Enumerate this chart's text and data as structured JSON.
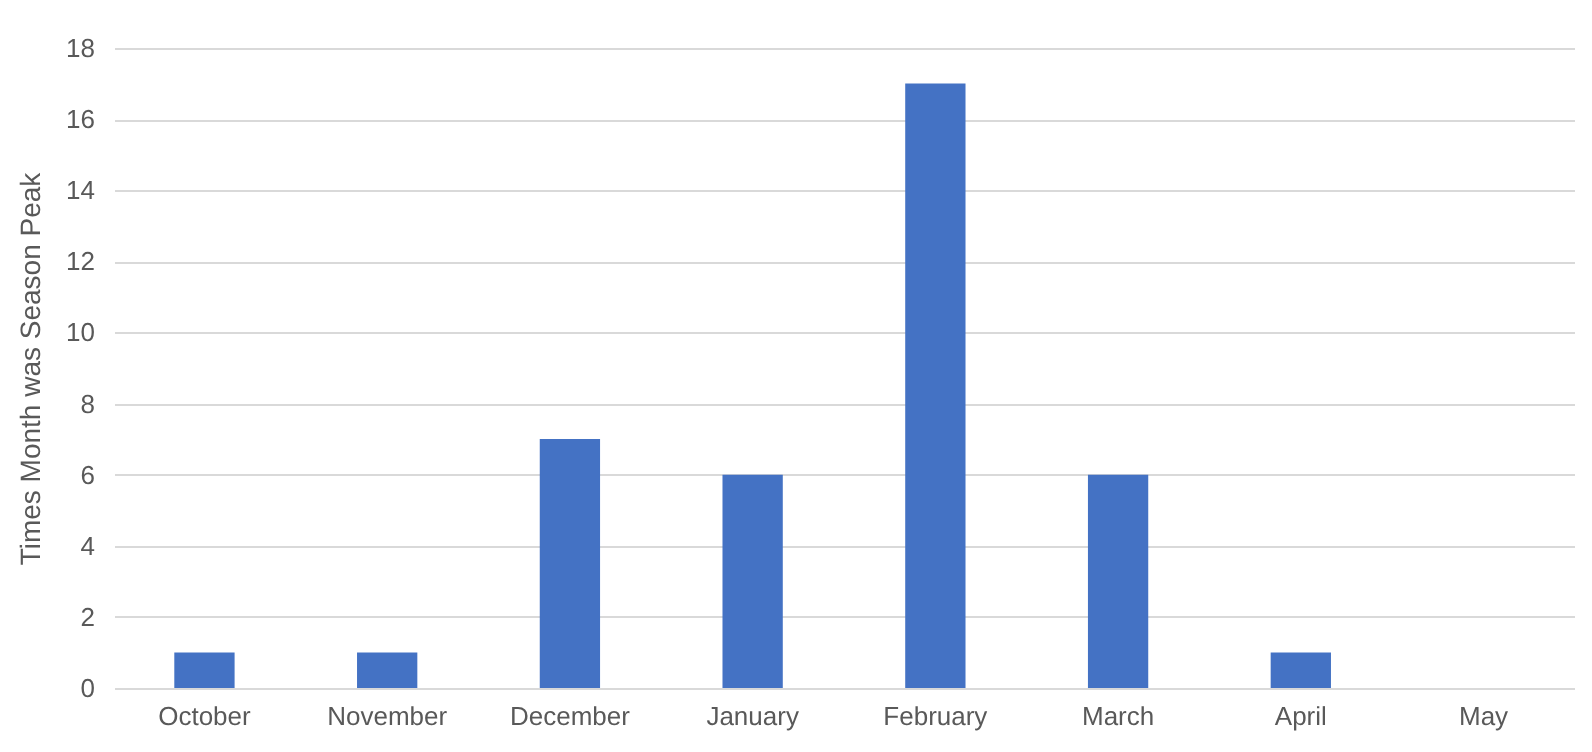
{
  "chart_data": {
    "type": "bar",
    "ylabel": "Times Month was Season Peak",
    "categories": [
      "October",
      "November",
      "December",
      "January",
      "February",
      "March",
      "April",
      "May"
    ],
    "values": [
      1,
      1,
      7,
      6,
      17,
      6,
      1,
      0
    ],
    "color": "#4472c4",
    "ylim": [
      0,
      18
    ],
    "yticks": [
      0,
      2,
      4,
      6,
      8,
      10,
      12,
      14,
      16,
      18
    ],
    "grid": "y"
  }
}
